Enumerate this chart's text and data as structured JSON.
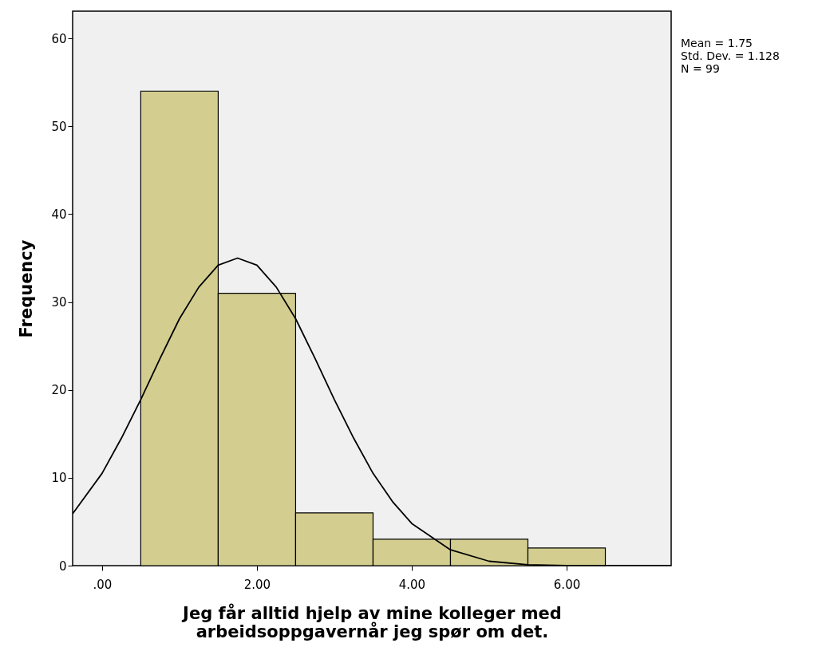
{
  "chart_data": {
    "type": "histogram",
    "xlabel": "Jeg får alltid hjelp av mine kolleger med\narbeidsoppgavernår jeg spør om det.",
    "ylabel": "Frequency",
    "bins": [
      0.5,
      1.5,
      2.5,
      3.5,
      4.5,
      5.5,
      6.5
    ],
    "values": [
      54,
      31,
      6,
      3,
      3,
      2
    ],
    "color": "#d3ce8f",
    "series": [
      {
        "type": "line",
        "color": "#000000",
        "x": [
          -0.38,
          0,
          0.25,
          0.5,
          0.75,
          1,
          1.25,
          1.5,
          1.75,
          2,
          2.25,
          2.5,
          2.75,
          3,
          3.25,
          3.5,
          3.75,
          4,
          4.5,
          5,
          5.5,
          6,
          7.35
        ],
        "values": [
          5.9,
          10.5,
          14.5,
          18.9,
          23.6,
          28.1,
          31.7,
          34.2,
          35,
          34.2,
          31.7,
          28.1,
          23.6,
          18.9,
          14.5,
          10.5,
          7.3,
          4.8,
          1.8,
          0.5,
          0.1,
          0,
          0
        ]
      }
    ],
    "xlim": [
      -0.38,
      7.35
    ],
    "ylim": [
      0,
      63.1
    ],
    "xticks": [
      {
        "value": 0,
        "label": ".00"
      },
      {
        "value": 2,
        "label": "2.00"
      },
      {
        "value": 4,
        "label": "4.00"
      },
      {
        "value": 6,
        "label": "6.00"
      }
    ],
    "yticks": [
      0,
      10,
      20,
      30,
      40,
      50,
      60
    ],
    "grid": false,
    "annotations": [
      "Mean = 1.75",
      "Std. Dev. = 1.128",
      "N = 99"
    ]
  }
}
